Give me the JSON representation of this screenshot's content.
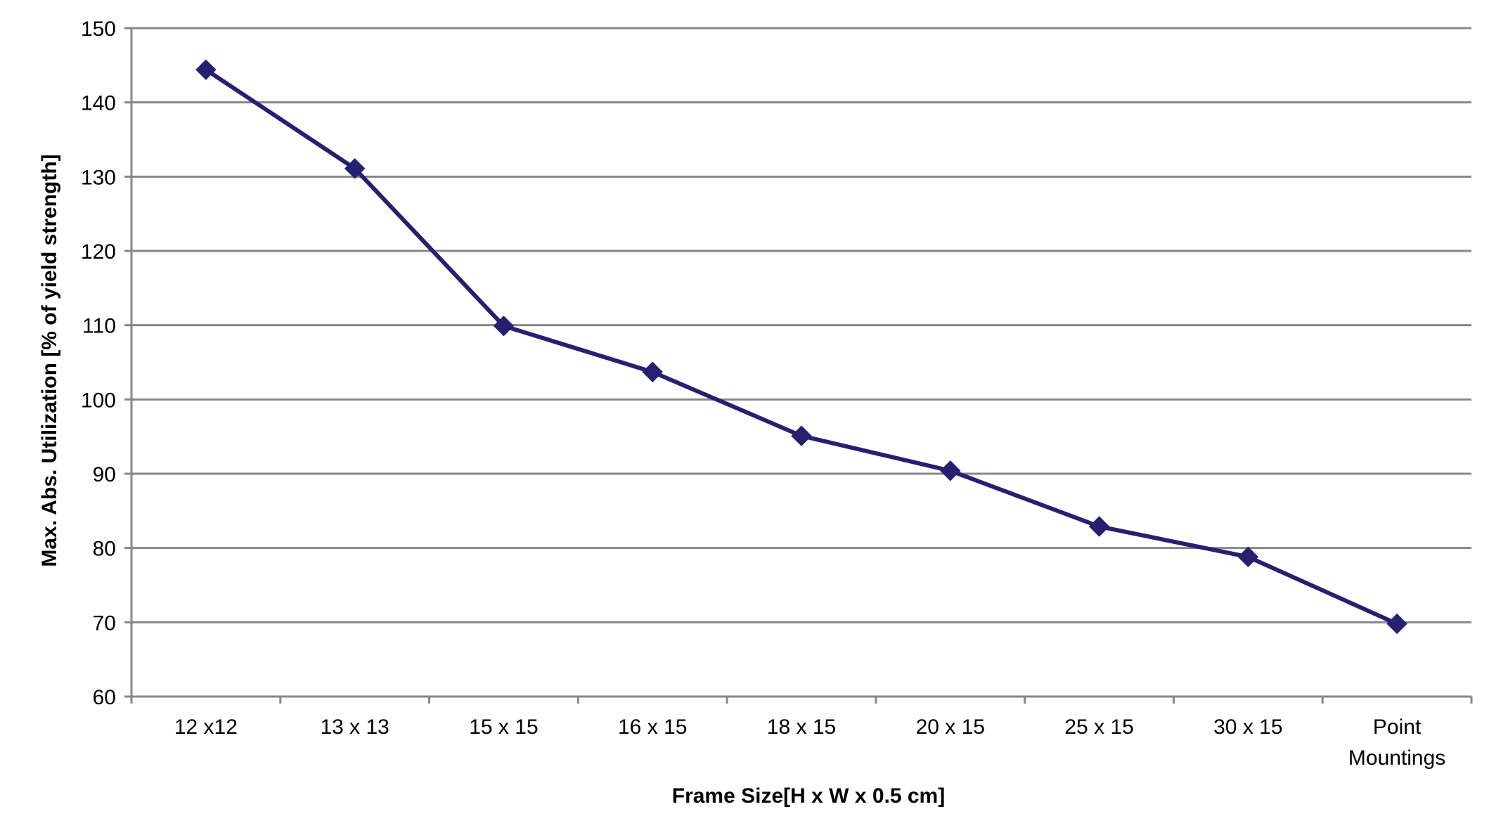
{
  "chart_data": {
    "type": "line",
    "title": "",
    "xlabel": "Frame Size[H x W x 0.5 cm]",
    "ylabel": "Max. Abs. Utilization [% of yield strength]",
    "categories": [
      "12 x12",
      "13 x 13",
      "15 x 15",
      "16 x 15",
      "18 x 15",
      "20 x 15",
      "25 x 15",
      "30 x 15",
      "Point Mountings"
    ],
    "series": [
      {
        "values": [
          144.4,
          131.1,
          109.9,
          103.7,
          95.1,
          90.4,
          82.9,
          78.8,
          69.8
        ],
        "color": "#262070",
        "marker": "diamond"
      }
    ],
    "ylim": [
      60,
      150
    ],
    "yticks": [
      60,
      70,
      80,
      90,
      100,
      110,
      120,
      130,
      140,
      150
    ],
    "grid": true,
    "legend": "none"
  }
}
